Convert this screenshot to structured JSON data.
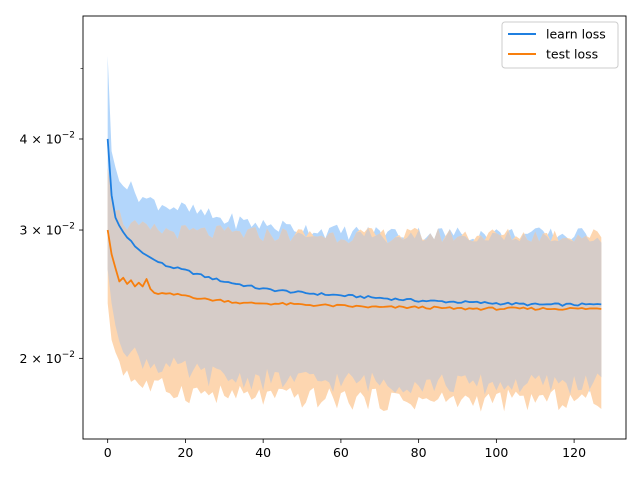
{
  "chart_data": {
    "type": "line",
    "title": "",
    "xlabel": "",
    "ylabel": "",
    "yscale": "log",
    "xlim": [
      -6.35,
      133.35
    ],
    "ylim": [
      0.0155,
      0.059
    ],
    "x_ticks": [
      0,
      20,
      40,
      60,
      80,
      100,
      120
    ],
    "x_tick_labels": [
      "0",
      "20",
      "40",
      "60",
      "80",
      "100",
      "120"
    ],
    "y_major_ticks": [
      0.02,
      0.03,
      0.04
    ],
    "y_major_tick_labels": [
      {
        "base": "2 × 10",
        "exp": "−2"
      },
      {
        "base": "3 × 10",
        "exp": "−2"
      },
      {
        "base": "4 × 10",
        "exp": "−2"
      }
    ],
    "y_minor_ticks": [
      0.05
    ],
    "grid": false,
    "legend": {
      "position": "top-right"
    },
    "colors": {
      "learn_line": "#1f7fe0",
      "learn_band": "#b3d6fb",
      "test_line": "#f77f0e",
      "test_band": "#fdd6b0",
      "overlap_band": "#d6ccc8"
    },
    "series": [
      {
        "name": "learn loss",
        "x_start": 0,
        "x_step": 1,
        "mean_anchors": [
          [
            0,
            0.04
          ],
          [
            1,
            0.0335
          ],
          [
            2,
            0.0312
          ],
          [
            3,
            0.0304
          ],
          [
            4,
            0.0298
          ],
          [
            5,
            0.0293
          ],
          [
            6,
            0.029
          ],
          [
            7,
            0.0285
          ],
          [
            8,
            0.0282
          ],
          [
            9,
            0.0279
          ],
          [
            10,
            0.0277
          ],
          [
            12,
            0.0273
          ],
          [
            15,
            0.0268
          ],
          [
            20,
            0.0264
          ],
          [
            25,
            0.0259
          ],
          [
            30,
            0.0255
          ],
          [
            35,
            0.0252
          ],
          [
            40,
            0.0249
          ],
          [
            50,
            0.0246
          ],
          [
            60,
            0.0244
          ],
          [
            70,
            0.0242
          ],
          [
            80,
            0.024
          ],
          [
            90,
            0.0239
          ],
          [
            100,
            0.0238
          ],
          [
            110,
            0.0237
          ],
          [
            127,
            0.0237
          ]
        ],
        "band_upper_anchors": [
          [
            0,
            0.052
          ],
          [
            1,
            0.0385
          ],
          [
            2,
            0.0365
          ],
          [
            5,
            0.0345
          ],
          [
            10,
            0.033
          ],
          [
            20,
            0.032
          ],
          [
            30,
            0.031
          ],
          [
            40,
            0.0305
          ],
          [
            60,
            0.0298
          ],
          [
            80,
            0.0297
          ],
          [
            100,
            0.0296
          ],
          [
            127,
            0.0295
          ]
        ],
        "band_lower_anchors": [
          [
            0,
            0.0265
          ],
          [
            1,
            0.0238
          ],
          [
            3,
            0.0215
          ],
          [
            6,
            0.0203
          ],
          [
            10,
            0.0198
          ],
          [
            20,
            0.0192
          ],
          [
            30,
            0.0188
          ],
          [
            40,
            0.0187
          ],
          [
            60,
            0.0186
          ],
          [
            80,
            0.0185
          ],
          [
            100,
            0.0184
          ],
          [
            127,
            0.0185
          ]
        ]
      },
      {
        "name": "test loss",
        "x_start": 0,
        "x_step": 1,
        "mean_anchors": [
          [
            0,
            0.03
          ],
          [
            1,
            0.0278
          ],
          [
            2,
            0.0266
          ],
          [
            3,
            0.0255
          ],
          [
            4,
            0.0258
          ],
          [
            5,
            0.0253
          ],
          [
            6,
            0.0256
          ],
          [
            7,
            0.0251
          ],
          [
            8,
            0.0254
          ],
          [
            9,
            0.0251
          ],
          [
            10,
            0.0257
          ],
          [
            11,
            0.0249
          ],
          [
            12,
            0.0246
          ],
          [
            15,
            0.0245
          ],
          [
            20,
            0.0244
          ],
          [
            25,
            0.0241
          ],
          [
            30,
            0.024
          ],
          [
            35,
            0.0238
          ],
          [
            40,
            0.0238
          ],
          [
            50,
            0.0237
          ],
          [
            60,
            0.0236
          ],
          [
            70,
            0.0235
          ],
          [
            80,
            0.0235
          ],
          [
            90,
            0.0234
          ],
          [
            100,
            0.0234
          ],
          [
            110,
            0.0234
          ],
          [
            127,
            0.0234
          ]
        ],
        "band_upper_anchors": [
          [
            0,
            0.0365
          ],
          [
            1,
            0.0335
          ],
          [
            3,
            0.0315
          ],
          [
            5,
            0.0305
          ],
          [
            10,
            0.03
          ],
          [
            20,
            0.0298
          ],
          [
            40,
            0.0296
          ],
          [
            60,
            0.0295
          ],
          [
            80,
            0.0295
          ],
          [
            100,
            0.0295
          ],
          [
            127,
            0.0295
          ]
        ],
        "band_lower_anchors": [
          [
            0,
            0.0238
          ],
          [
            1,
            0.0212
          ],
          [
            3,
            0.0198
          ],
          [
            6,
            0.0188
          ],
          [
            10,
            0.0183
          ],
          [
            20,
            0.018
          ],
          [
            30,
            0.0178
          ],
          [
            40,
            0.0177
          ],
          [
            60,
            0.0176
          ],
          [
            80,
            0.0175
          ],
          [
            100,
            0.0175
          ],
          [
            127,
            0.0176
          ]
        ]
      }
    ]
  }
}
